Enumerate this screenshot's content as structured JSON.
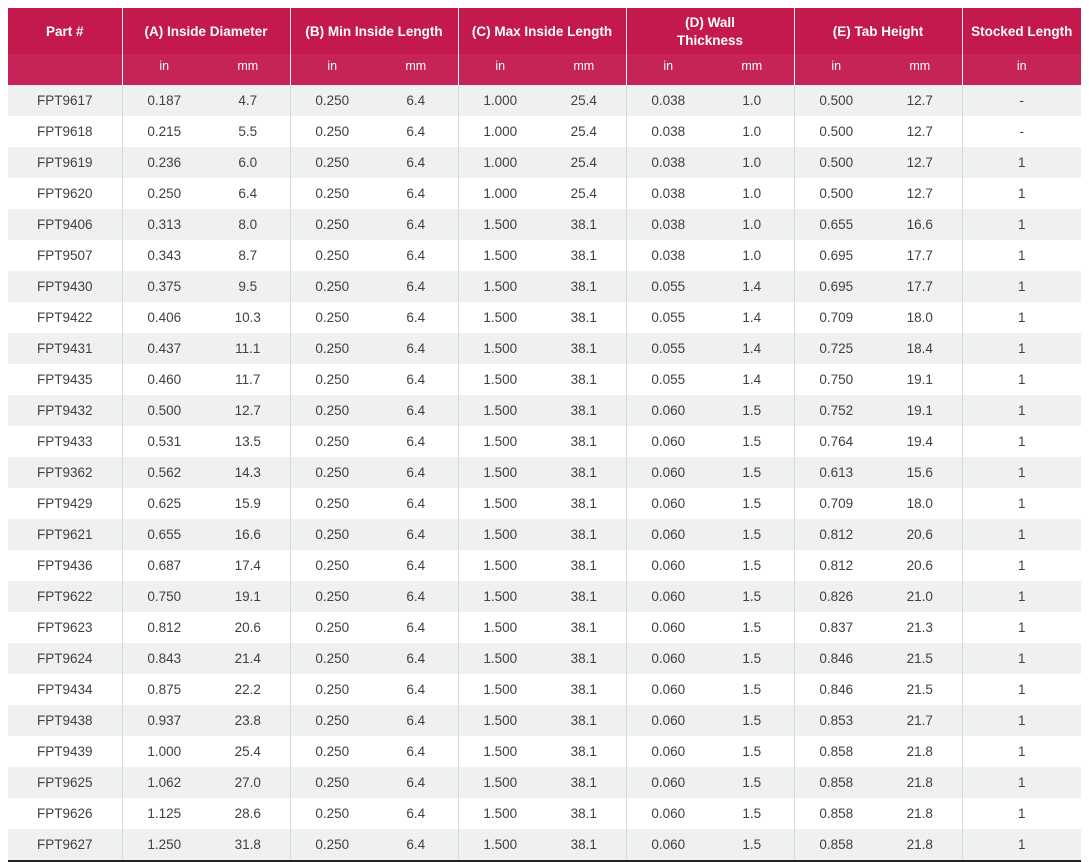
{
  "colors": {
    "header_bg": "#c3194d",
    "header_text": "#ffffff",
    "row_bg": "#ffffff",
    "row_alt_bg": "#eef0f1",
    "body_text": "#404040",
    "divider": "#d7dadb",
    "bottom_border": "#222222"
  },
  "header": {
    "groups": [
      {
        "label": "Part #",
        "units": [
          ""
        ]
      },
      {
        "label": "(A) Inside Diameter",
        "units": [
          "in",
          "mm"
        ]
      },
      {
        "label": "(B) Min Inside Length",
        "units": [
          "in",
          "mm"
        ]
      },
      {
        "label": "(C) Max Inside Length",
        "units": [
          "in",
          "mm"
        ]
      },
      {
        "label": "(D) Wall Thickness",
        "units": [
          "in",
          "mm"
        ]
      },
      {
        "label": "(E) Tab Height",
        "units": [
          "in",
          "mm"
        ]
      },
      {
        "label": "Stocked Length",
        "units": [
          "in"
        ]
      }
    ]
  },
  "rows": [
    [
      "FPT9617",
      "0.187",
      "4.7",
      "0.250",
      "6.4",
      "1.000",
      "25.4",
      "0.038",
      "1.0",
      "0.500",
      "12.7",
      "-"
    ],
    [
      "FPT9618",
      "0.215",
      "5.5",
      "0.250",
      "6.4",
      "1.000",
      "25.4",
      "0.038",
      "1.0",
      "0.500",
      "12.7",
      "-"
    ],
    [
      "FPT9619",
      "0.236",
      "6.0",
      "0.250",
      "6.4",
      "1.000",
      "25.4",
      "0.038",
      "1.0",
      "0.500",
      "12.7",
      "1"
    ],
    [
      "FPT9620",
      "0.250",
      "6.4",
      "0.250",
      "6.4",
      "1.000",
      "25.4",
      "0.038",
      "1.0",
      "0.500",
      "12.7",
      "1"
    ],
    [
      "FPT9406",
      "0.313",
      "8.0",
      "0.250",
      "6.4",
      "1.500",
      "38.1",
      "0.038",
      "1.0",
      "0.655",
      "16.6",
      "1"
    ],
    [
      "FPT9507",
      "0.343",
      "8.7",
      "0.250",
      "6.4",
      "1.500",
      "38.1",
      "0.038",
      "1.0",
      "0.695",
      "17.7",
      "1"
    ],
    [
      "FPT9430",
      "0.375",
      "9.5",
      "0.250",
      "6.4",
      "1.500",
      "38.1",
      "0.055",
      "1.4",
      "0.695",
      "17.7",
      "1"
    ],
    [
      "FPT9422",
      "0.406",
      "10.3",
      "0.250",
      "6.4",
      "1.500",
      "38.1",
      "0.055",
      "1.4",
      "0.709",
      "18.0",
      "1"
    ],
    [
      "FPT9431",
      "0.437",
      "11.1",
      "0.250",
      "6.4",
      "1.500",
      "38.1",
      "0.055",
      "1.4",
      "0.725",
      "18.4",
      "1"
    ],
    [
      "FPT9435",
      "0.460",
      "11.7",
      "0.250",
      "6.4",
      "1.500",
      "38.1",
      "0.055",
      "1.4",
      "0.750",
      "19.1",
      "1"
    ],
    [
      "FPT9432",
      "0.500",
      "12.7",
      "0.250",
      "6.4",
      "1.500",
      "38.1",
      "0.060",
      "1.5",
      "0.752",
      "19.1",
      "1"
    ],
    [
      "FPT9433",
      "0.531",
      "13.5",
      "0.250",
      "6.4",
      "1.500",
      "38.1",
      "0.060",
      "1.5",
      "0.764",
      "19.4",
      "1"
    ],
    [
      "FPT9362",
      "0.562",
      "14.3",
      "0.250",
      "6.4",
      "1.500",
      "38.1",
      "0.060",
      "1.5",
      "0.613",
      "15.6",
      "1"
    ],
    [
      "FPT9429",
      "0.625",
      "15.9",
      "0.250",
      "6.4",
      "1.500",
      "38.1",
      "0.060",
      "1.5",
      "0.709",
      "18.0",
      "1"
    ],
    [
      "FPT9621",
      "0.655",
      "16.6",
      "0.250",
      "6.4",
      "1.500",
      "38.1",
      "0.060",
      "1.5",
      "0.812",
      "20.6",
      "1"
    ],
    [
      "FPT9436",
      "0.687",
      "17.4",
      "0.250",
      "6.4",
      "1.500",
      "38.1",
      "0.060",
      "1.5",
      "0.812",
      "20.6",
      "1"
    ],
    [
      "FPT9622",
      "0.750",
      "19.1",
      "0.250",
      "6.4",
      "1.500",
      "38.1",
      "0.060",
      "1.5",
      "0.826",
      "21.0",
      "1"
    ],
    [
      "FPT9623",
      "0.812",
      "20.6",
      "0.250",
      "6.4",
      "1.500",
      "38.1",
      "0.060",
      "1.5",
      "0.837",
      "21.3",
      "1"
    ],
    [
      "FPT9624",
      "0.843",
      "21.4",
      "0.250",
      "6.4",
      "1.500",
      "38.1",
      "0.060",
      "1.5",
      "0.846",
      "21.5",
      "1"
    ],
    [
      "FPT9434",
      "0.875",
      "22.2",
      "0.250",
      "6.4",
      "1.500",
      "38.1",
      "0.060",
      "1.5",
      "0.846",
      "21.5",
      "1"
    ],
    [
      "FPT9438",
      "0.937",
      "23.8",
      "0.250",
      "6.4",
      "1.500",
      "38.1",
      "0.060",
      "1.5",
      "0.853",
      "21.7",
      "1"
    ],
    [
      "FPT9439",
      "1.000",
      "25.4",
      "0.250",
      "6.4",
      "1.500",
      "38.1",
      "0.060",
      "1.5",
      "0.858",
      "21.8",
      "1"
    ],
    [
      "FPT9625",
      "1.062",
      "27.0",
      "0.250",
      "6.4",
      "1.500",
      "38.1",
      "0.060",
      "1.5",
      "0.858",
      "21.8",
      "1"
    ],
    [
      "FPT9626",
      "1.125",
      "28.6",
      "0.250",
      "6.4",
      "1.500",
      "38.1",
      "0.060",
      "1.5",
      "0.858",
      "21.8",
      "1"
    ],
    [
      "FPT9627",
      "1.250",
      "31.8",
      "0.250",
      "6.4",
      "1.500",
      "38.1",
      "0.060",
      "1.5",
      "0.858",
      "21.8",
      "1"
    ]
  ]
}
